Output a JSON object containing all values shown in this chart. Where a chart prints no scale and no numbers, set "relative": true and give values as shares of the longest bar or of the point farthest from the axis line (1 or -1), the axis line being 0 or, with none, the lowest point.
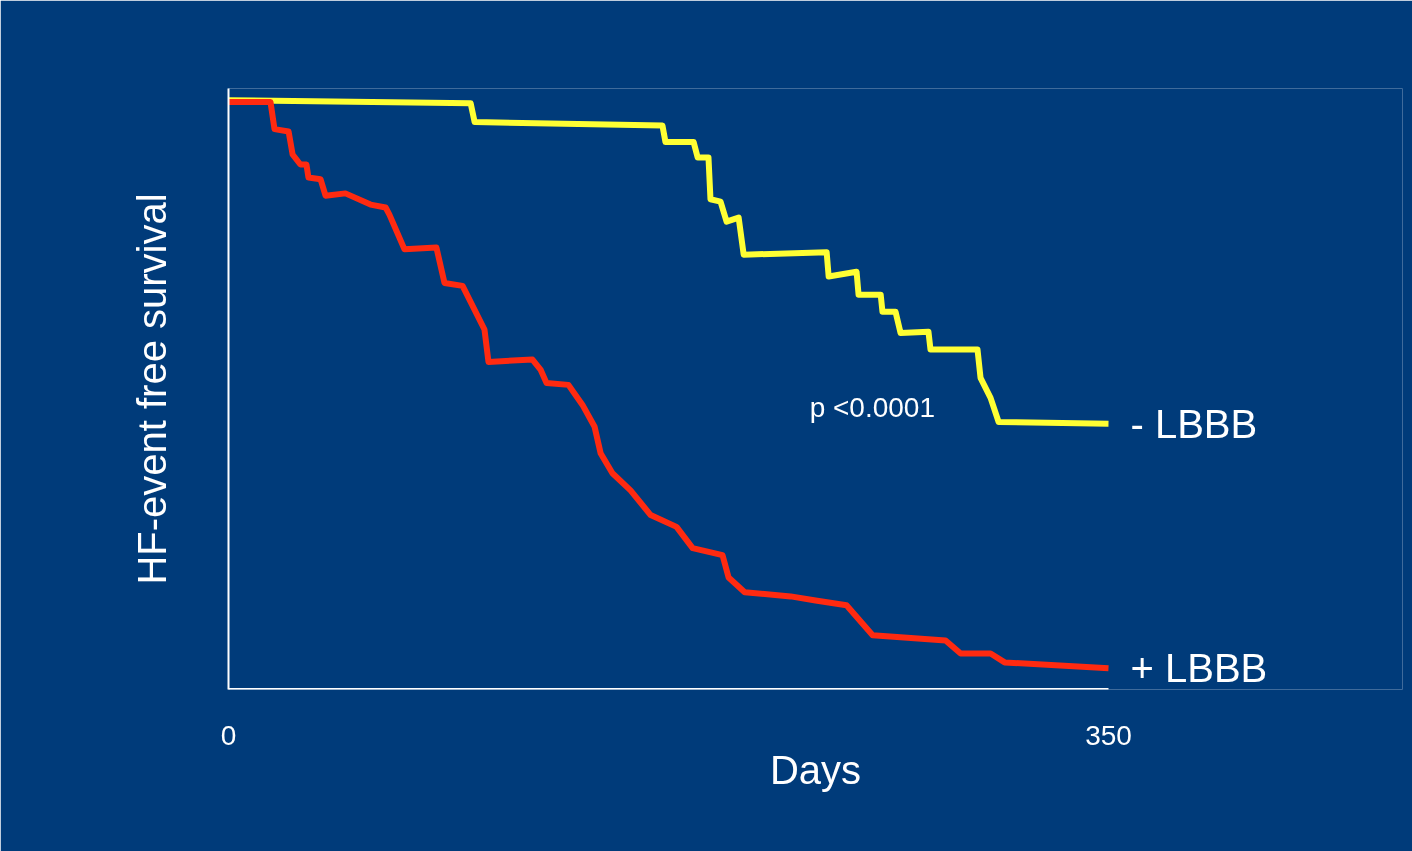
{
  "chart_data": {
    "type": "line",
    "relative": true,
    "xlabel": "Days",
    "ylabel": "HF-event free survival",
    "xlim": [
      0,
      350
    ],
    "xticks": [
      0,
      350
    ],
    "grid": false,
    "legend": false,
    "marker": "none",
    "line_style": "solid",
    "annotations": [
      "p <0.0001"
    ],
    "series": [
      {
        "name": "- LBBB",
        "color": "#ffff33",
        "x": [
          0,
          96.3,
          97.9,
          172.6,
          173.8,
          185,
          186.6,
          190.9,
          191.7,
          195.7,
          198.1,
          202.9,
          204.9,
          237.9,
          238.7,
          249.8,
          250.6,
          259.4,
          260.1,
          265.3,
          267.3,
          278.4,
          279.2,
          297.9,
          299.1,
          303.1,
          306.3,
          350
        ],
        "values": [
          1.0,
          0.995,
          0.963,
          0.957,
          0.929,
          0.929,
          0.903,
          0.903,
          0.832,
          0.828,
          0.794,
          0.801,
          0.738,
          0.742,
          0.701,
          0.709,
          0.67,
          0.67,
          0.641,
          0.641,
          0.605,
          0.607,
          0.577,
          0.577,
          0.529,
          0.495,
          0.454,
          0.451
        ]
      },
      {
        "name": "+ LBBB",
        "color": "#ff2a10",
        "x": [
          0,
          16.7,
          18.3,
          23.9,
          25.5,
          28.6,
          31,
          31.8,
          36.6,
          38.6,
          46.5,
          56.5,
          62.5,
          64,
          70,
          82.7,
          85.9,
          93.1,
          101.8,
          103.4,
          120.9,
          124.1,
          126.5,
          135.2,
          140.8,
          145.6,
          148,
          152.7,
          159.9,
          167.9,
          178.2,
          184.6,
          196.5,
          198.9,
          205.3,
          223.6,
          233.5,
          245.8,
          256.2,
          285.2,
          291.2,
          303.1,
          308.7,
          350
        ],
        "values": [
          0.997,
          0.997,
          0.951,
          0.947,
          0.908,
          0.891,
          0.891,
          0.869,
          0.866,
          0.838,
          0.842,
          0.823,
          0.818,
          0.806,
          0.747,
          0.75,
          0.69,
          0.685,
          0.611,
          0.556,
          0.56,
          0.543,
          0.52,
          0.517,
          0.483,
          0.446,
          0.401,
          0.367,
          0.338,
          0.296,
          0.276,
          0.24,
          0.228,
          0.19,
          0.165,
          0.158,
          0.151,
          0.143,
          0.092,
          0.083,
          0.061,
          0.061,
          0.046,
          0.036
        ]
      }
    ]
  }
}
